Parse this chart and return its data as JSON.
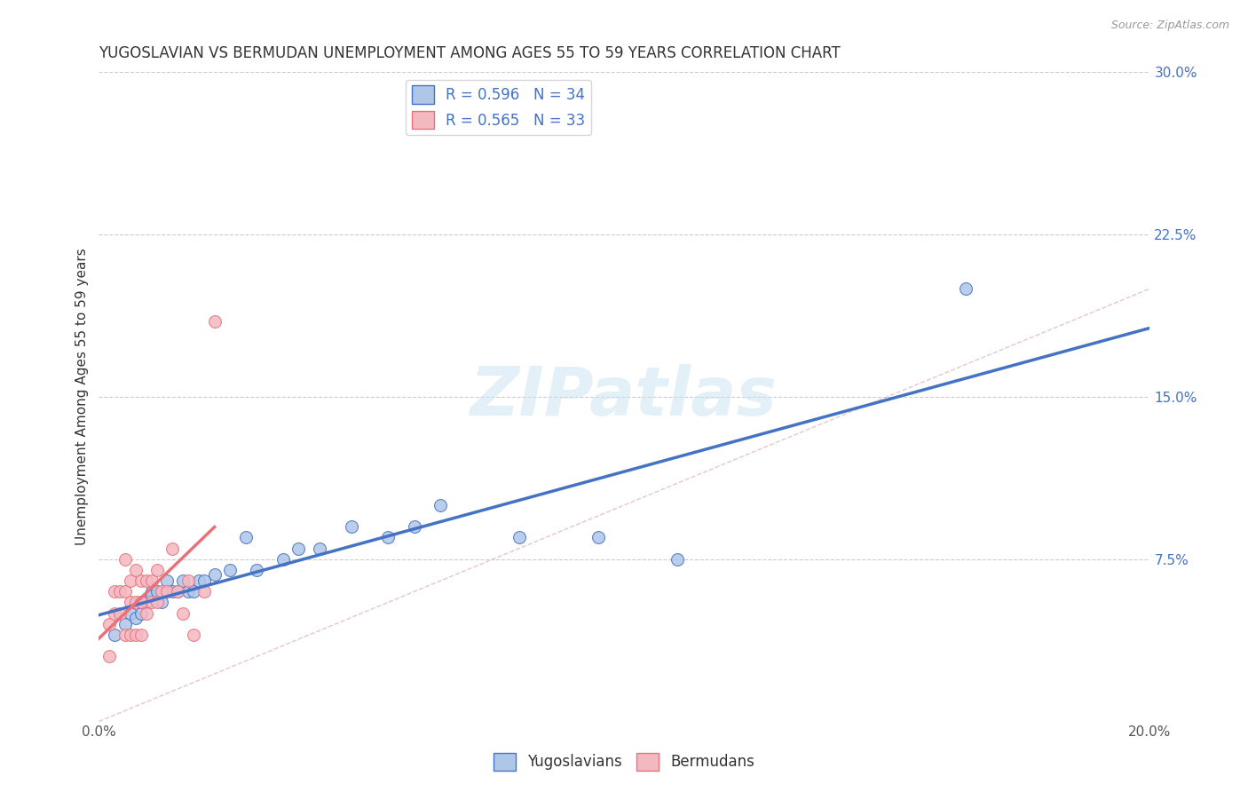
{
  "title": "YUGOSLAVIAN VS BERMUDAN UNEMPLOYMENT AMONG AGES 55 TO 59 YEARS CORRELATION CHART",
  "source": "Source: ZipAtlas.com",
  "ylabel": "Unemployment Among Ages 55 to 59 years",
  "xlim": [
    0.0,
    0.2
  ],
  "ylim": [
    0.0,
    0.3
  ],
  "r_yugoslavian": 0.596,
  "n_yugoslavian": 34,
  "r_bermudan": 0.565,
  "n_bermudan": 33,
  "color_yugoslavian": "#aec6e8",
  "color_bermudan": "#f4b8c1",
  "color_line_yugoslavian": "#4472c4",
  "color_line_bermudan": "#e8717a",
  "color_diag": "#d8a0a8",
  "watermark_text": "ZIPatlas",
  "yugoslavian_x": [
    0.003,
    0.005,
    0.006,
    0.007,
    0.008,
    0.008,
    0.009,
    0.01,
    0.01,
    0.011,
    0.012,
    0.013,
    0.014,
    0.015,
    0.016,
    0.017,
    0.018,
    0.019,
    0.02,
    0.022,
    0.025,
    0.028,
    0.03,
    0.035,
    0.038,
    0.042,
    0.048,
    0.055,
    0.06,
    0.065,
    0.08,
    0.095,
    0.11,
    0.165
  ],
  "yugoslavian_y": [
    0.04,
    0.045,
    0.05,
    0.048,
    0.05,
    0.055,
    0.055,
    0.06,
    0.058,
    0.06,
    0.055,
    0.065,
    0.06,
    0.06,
    0.065,
    0.06,
    0.06,
    0.065,
    0.065,
    0.068,
    0.07,
    0.085,
    0.07,
    0.075,
    0.08,
    0.08,
    0.09,
    0.085,
    0.09,
    0.1,
    0.085,
    0.085,
    0.075,
    0.2
  ],
  "bermudan_x": [
    0.002,
    0.002,
    0.003,
    0.003,
    0.004,
    0.004,
    0.005,
    0.005,
    0.005,
    0.006,
    0.006,
    0.006,
    0.007,
    0.007,
    0.007,
    0.008,
    0.008,
    0.008,
    0.009,
    0.009,
    0.01,
    0.01,
    0.011,
    0.011,
    0.012,
    0.013,
    0.014,
    0.015,
    0.016,
    0.017,
    0.018,
    0.02,
    0.022
  ],
  "bermudan_y": [
    0.045,
    0.03,
    0.05,
    0.06,
    0.05,
    0.06,
    0.04,
    0.06,
    0.075,
    0.04,
    0.055,
    0.065,
    0.04,
    0.055,
    0.07,
    0.04,
    0.055,
    0.065,
    0.05,
    0.065,
    0.055,
    0.065,
    0.055,
    0.07,
    0.06,
    0.06,
    0.08,
    0.06,
    0.05,
    0.065,
    0.04,
    0.06,
    0.185
  ],
  "title_fontsize": 12,
  "axis_label_fontsize": 11,
  "tick_fontsize": 11,
  "legend_fontsize": 12
}
